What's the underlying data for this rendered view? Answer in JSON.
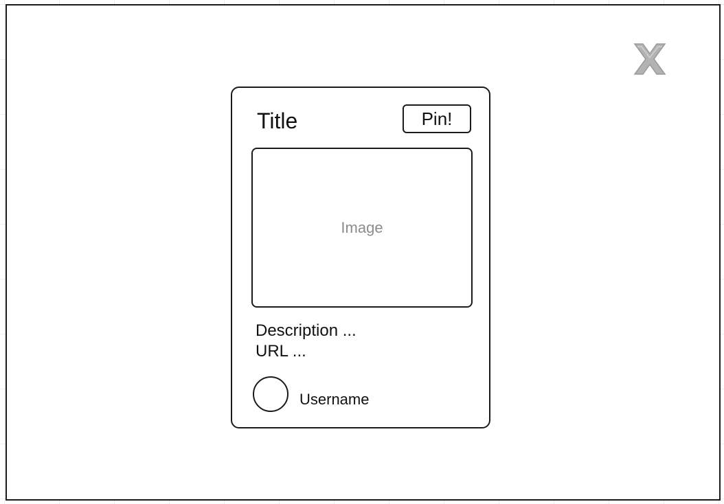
{
  "modal": {
    "close_icon": "close-icon"
  },
  "card": {
    "title": "Title",
    "pin_label": "Pin!",
    "image_placeholder": "Image",
    "description": "Description ...",
    "url": "URL ...",
    "username": "Username",
    "avatar_icon": "avatar-circle"
  },
  "colors": {
    "outline": "#1a1a1a",
    "close_icon": "#aaaaaa",
    "placeholder_text": "#8c8c8c",
    "grid": "#ececec"
  }
}
